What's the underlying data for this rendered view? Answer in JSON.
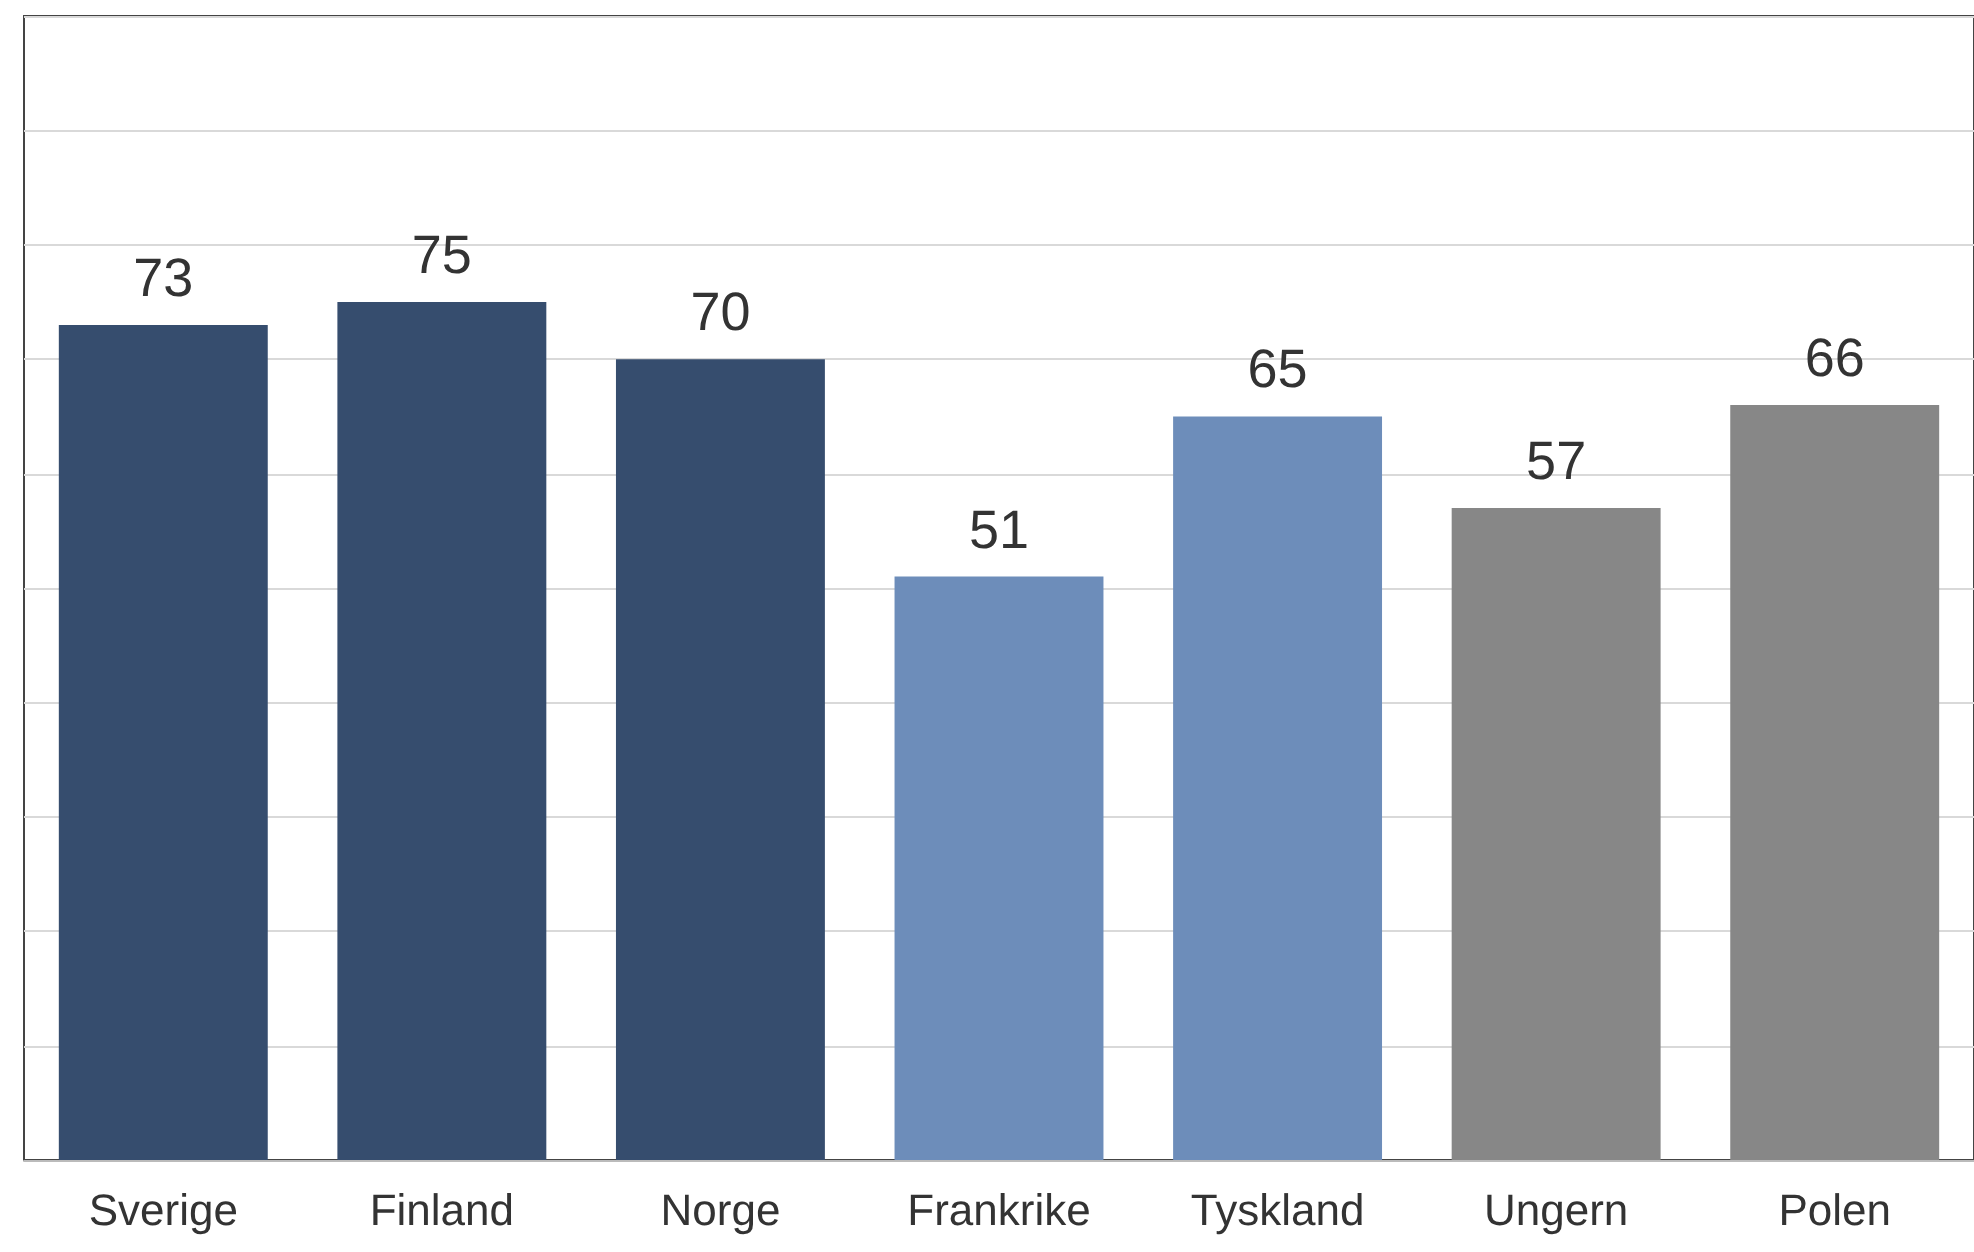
{
  "chart_data": {
    "type": "bar",
    "categories": [
      "Sverige",
      "Finland",
      "Norge",
      "Frankrike",
      "Tyskland",
      "Ungern",
      "Polen"
    ],
    "values": [
      73,
      75,
      70,
      51,
      65,
      57,
      66
    ],
    "colors": [
      "#364d6e",
      "#364d6e",
      "#364d6e",
      "#6d8dba",
      "#6d8dba",
      "#878787",
      "#878787"
    ],
    "ylim": [
      0,
      100
    ],
    "yticks": [
      0,
      10,
      20,
      30,
      40,
      50,
      60,
      70,
      80,
      90,
      100
    ],
    "grid": "y",
    "tick_labels": "x",
    "data_labels": true
  }
}
